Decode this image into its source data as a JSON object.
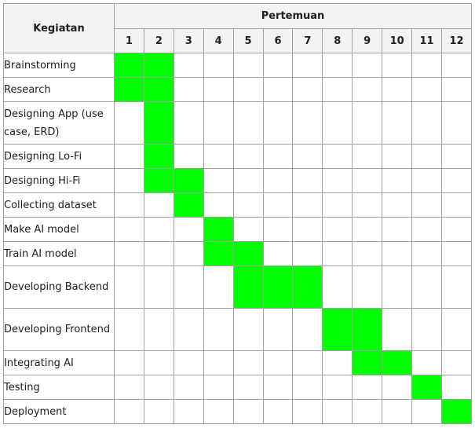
{
  "header": {
    "activity_label": "Kegiatan",
    "meeting_label": "Pertemuan",
    "weeks": [
      "1",
      "2",
      "3",
      "4",
      "5",
      "6",
      "7",
      "8",
      "9",
      "10",
      "11",
      "12"
    ]
  },
  "highlight_color": "#00ff00",
  "rows": [
    {
      "label": "Brainstorming",
      "weeks": [
        1,
        2
      ]
    },
    {
      "label": "Research",
      "weeks": [
        1,
        2
      ]
    },
    {
      "label": "Designing App (use case, ERD)",
      "weeks": [
        2
      ]
    },
    {
      "label": "Designing Lo-Fi",
      "weeks": [
        2
      ]
    },
    {
      "label": "Designing Hi-Fi",
      "weeks": [
        2,
        3
      ]
    },
    {
      "label": "Collecting dataset",
      "weeks": [
        3
      ]
    },
    {
      "label": "Make AI model",
      "weeks": [
        4
      ]
    },
    {
      "label": "Train AI model",
      "weeks": [
        4,
        5
      ]
    },
    {
      "label": "Developing Backend",
      "weeks": [
        5,
        6,
        7
      ]
    },
    {
      "label": "Developing Frontend",
      "weeks": [
        8,
        9
      ]
    },
    {
      "label": "Integrating AI",
      "weeks": [
        9,
        10
      ]
    },
    {
      "label": "Testing",
      "weeks": [
        11
      ]
    },
    {
      "label": "Deployment",
      "weeks": [
        12
      ]
    }
  ]
}
